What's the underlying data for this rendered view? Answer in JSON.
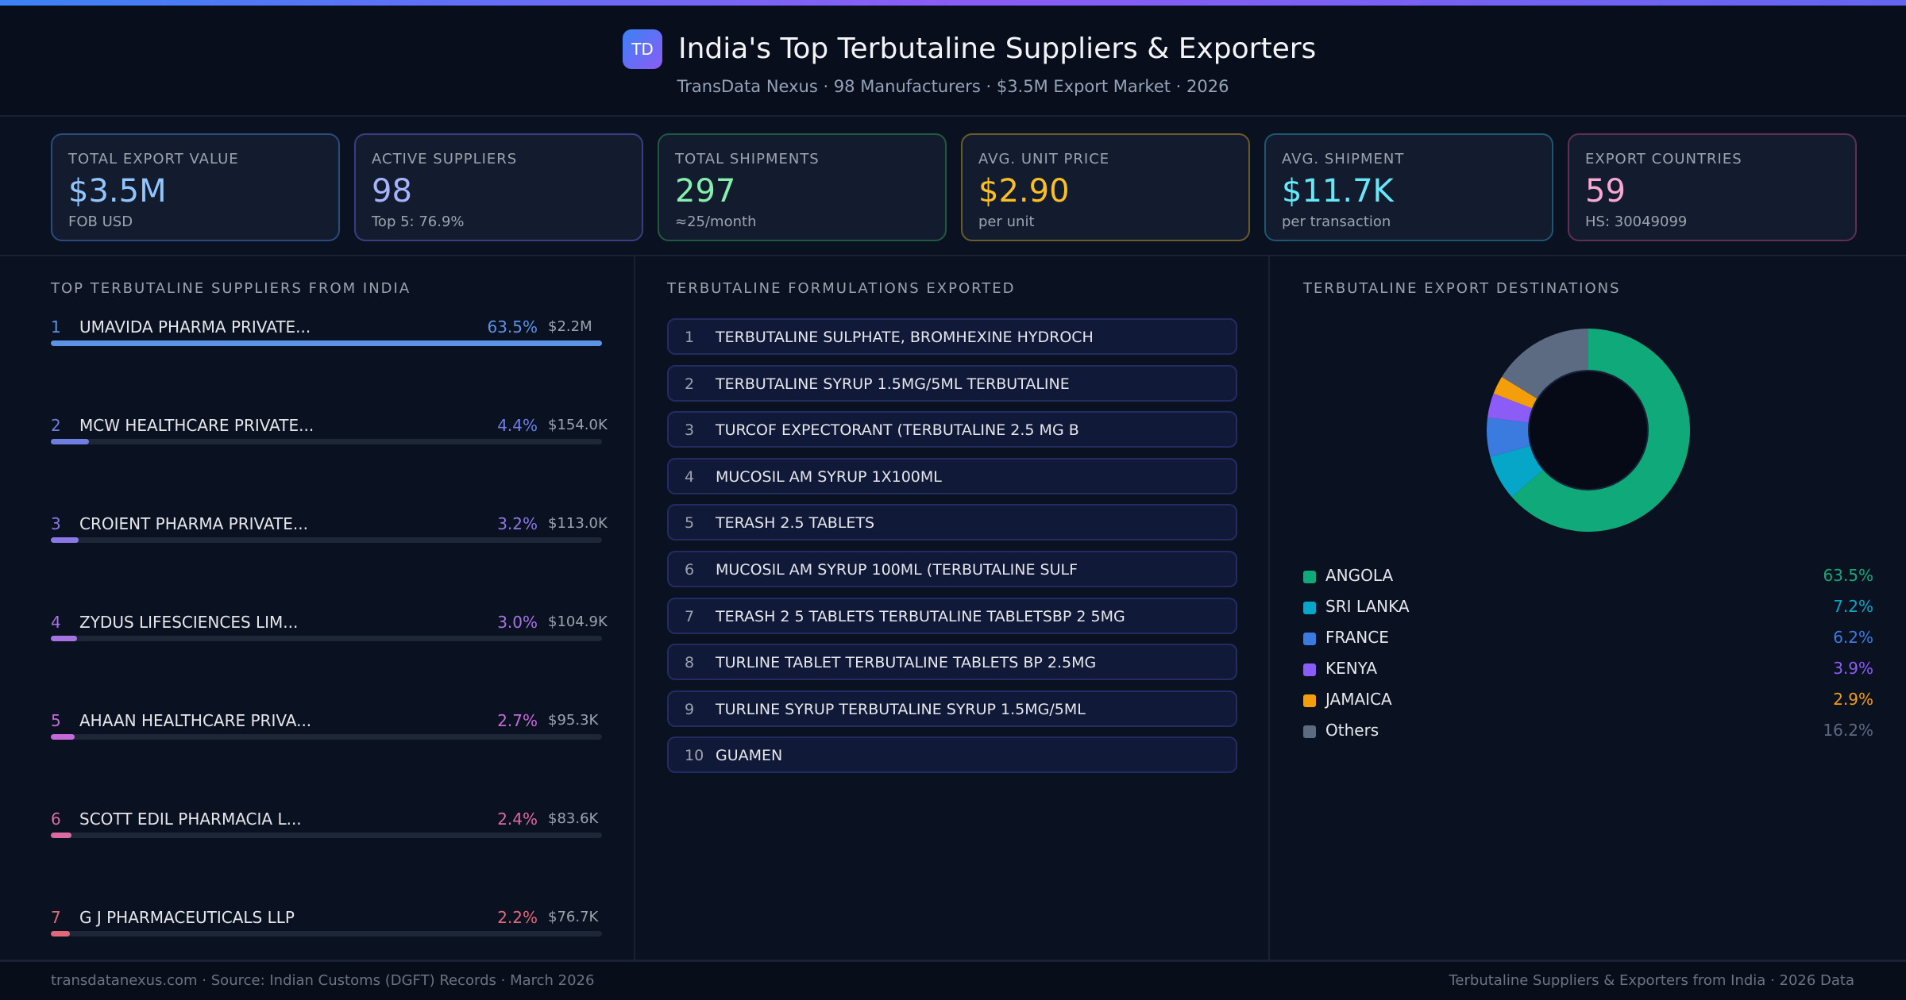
{
  "header": {
    "logo": "TD",
    "title": "India's Top Terbutaline Suppliers & Exporters",
    "subtitle": "TransData Nexus · 98 Manufacturers · $3.5M Export Market · 2026"
  },
  "kpis": [
    {
      "label": "TOTAL EXPORT VALUE",
      "value": "$3.5M",
      "sub": "FOB USD",
      "border": "#2c4a7e",
      "color": "#93c5fd"
    },
    {
      "label": "ACTIVE SUPPLIERS",
      "value": "98",
      "sub": "Top 5: 76.9%",
      "border": "#3a3d80",
      "color": "#a5b4fc"
    },
    {
      "label": "TOTAL SHIPMENTS",
      "value": "297",
      "sub": "≈25/month",
      "border": "#1f5a40",
      "color": "#86efac"
    },
    {
      "label": "AVG. UNIT PRICE",
      "value": "$2.90",
      "sub": "per unit",
      "border": "#6b5a2a",
      "color": "#fbbf24"
    },
    {
      "label": "AVG. SHIPMENT",
      "value": "$11.7K",
      "sub": "per transaction",
      "border": "#1e5670",
      "color": "#67e8f9"
    },
    {
      "label": "EXPORT COUNTRIES",
      "value": "59",
      "sub": "HS: 30049099",
      "border": "#5e3052",
      "color": "#f9a8d4"
    }
  ],
  "suppliers": {
    "title": "TOP TERBUTALINE SUPPLIERS FROM INDIA",
    "items": [
      {
        "rank": "1",
        "name": "UMAVIDA PHARMA PRIVATE...",
        "pct": "63.5%",
        "share": 63.5,
        "value": "$2.2M",
        "color": "#5b93e6"
      },
      {
        "rank": "2",
        "name": "MCW HEALTHCARE PRIVATE...",
        "pct": "4.4%",
        "share": 4.4,
        "value": "$154.0K",
        "color": "#707ee0"
      },
      {
        "rank": "3",
        "name": "CROIENT PHARMA PRIVATE...",
        "pct": "3.2%",
        "share": 3.2,
        "value": "$113.0K",
        "color": "#8b78e6"
      },
      {
        "rank": "4",
        "name": "ZYDUS LIFESCIENCES LIM...",
        "pct": "3.0%",
        "share": 3.0,
        "value": "$104.9K",
        "color": "#a574e2"
      },
      {
        "rank": "5",
        "name": "AHAAN HEALTHCARE PRIVA...",
        "pct": "2.7%",
        "share": 2.7,
        "value": "$95.3K",
        "color": "#c46ad8"
      },
      {
        "rank": "6",
        "name": "SCOTT EDIL PHARMACIA L...",
        "pct": "2.4%",
        "share": 2.4,
        "value": "$83.6K",
        "color": "#dc6aa2"
      },
      {
        "rank": "7",
        "name": "G J PHARMACEUTICALS LLP",
        "pct": "2.2%",
        "share": 2.2,
        "value": "$76.7K",
        "color": "#e0687a"
      }
    ]
  },
  "formulations": {
    "title": "TERBUTALINE FORMULATIONS EXPORTED",
    "items": [
      {
        "n": "1",
        "text": "TERBUTALINE SULPHATE, BROMHEXINE HYDROCH"
      },
      {
        "n": "2",
        "text": "TERBUTALINE SYRUP 1.5MG/5ML TERBUTALINE"
      },
      {
        "n": "3",
        "text": "TURCOF EXPECTORANT (TERBUTALINE 2.5 MG B"
      },
      {
        "n": "4",
        "text": "MUCOSIL AM SYRUP 1X100ML"
      },
      {
        "n": "5",
        "text": "TERASH 2.5 TABLETS"
      },
      {
        "n": "6",
        "text": "MUCOSIL AM SYRUP 100ML (TERBUTALINE SULF"
      },
      {
        "n": "7",
        "text": "TERASH 2 5 TABLETS TERBUTALINE TABLETSBP 2 5MG"
      },
      {
        "n": "8",
        "text": "TURLINE TABLET TERBUTALINE TABLETS BP 2.5MG"
      },
      {
        "n": "9",
        "text": "TURLINE SYRUP TERBUTALINE SYRUP 1.5MG/5ML"
      },
      {
        "n": "10",
        "text": "GUAMEN"
      }
    ]
  },
  "destinations": {
    "title": "TERBUTALINE EXPORT DESTINATIONS",
    "chart_type": "donut",
    "items": [
      {
        "name": "ANGOLA",
        "pct": "63.5%",
        "value": 63.5,
        "color": "#10a97a"
      },
      {
        "name": "SRI LANKA",
        "pct": "7.2%",
        "value": 7.2,
        "color": "#06a6c8"
      },
      {
        "name": "FRANCE",
        "pct": "6.2%",
        "value": 6.2,
        "color": "#3b7be0"
      },
      {
        "name": "KENYA",
        "pct": "3.9%",
        "value": 3.9,
        "color": "#8b5cf6"
      },
      {
        "name": "JAMAICA",
        "pct": "2.9%",
        "value": 2.9,
        "color": "#f59e0b"
      },
      {
        "name": "Others",
        "pct": "16.2%",
        "value": 16.2,
        "color": "#5d6b82"
      }
    ]
  },
  "footer": {
    "left": "transdatanexus.com · Source: Indian Customs (DGFT) Records · March 2026",
    "right": "Terbutaline Suppliers & Exporters from India · 2026 Data"
  }
}
